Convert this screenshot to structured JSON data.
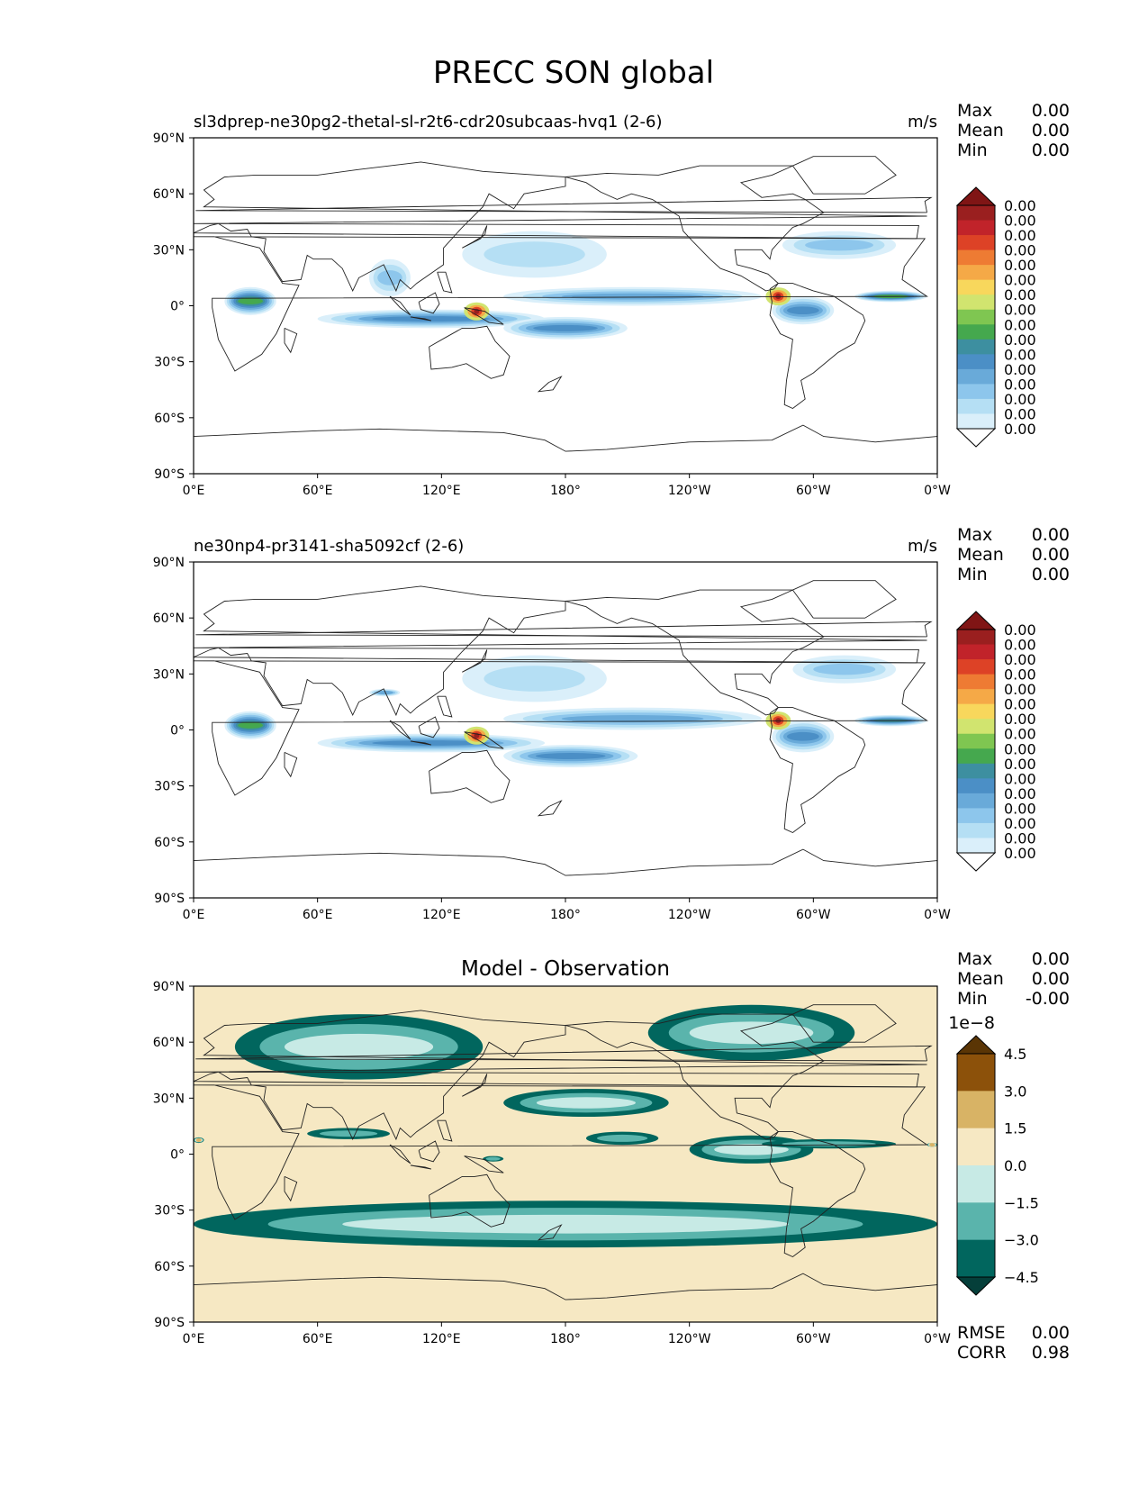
{
  "suptitle": "PRECC SON global",
  "panels": [
    {
      "title_left": "sl3dprep-ne30pg2-thetal-sl-r2t6-cdr20subcaas-hvq1 (2-6)",
      "title_right": "m/s",
      "stats": [
        {
          "label": "Max",
          "value": "0.00"
        },
        {
          "label": "Mean",
          "value": "0.00"
        },
        {
          "label": "Min",
          "value": "0.00"
        }
      ],
      "colorbar": {
        "labels": [
          "0.00",
          "0.00",
          "0.00",
          "0.00",
          "0.00",
          "0.00",
          "0.00",
          "0.00",
          "0.00",
          "0.00",
          "0.00",
          "0.00",
          "0.00",
          "0.00",
          "0.00",
          "0.00"
        ],
        "colors": [
          "#ffffff",
          "#daeffa",
          "#b5dff4",
          "#8dc6ec",
          "#69aad9",
          "#4b8fc6",
          "#3d8fa0",
          "#45a84e",
          "#7fc651",
          "#d1e46f",
          "#f8d75c",
          "#f5a947",
          "#ee7b33",
          "#dd4226",
          "#c1232a",
          "#9a1f1f",
          "#801515"
        ]
      },
      "bands": [
        {
          "lat0": 2,
          "lat1": 7,
          "lon0": 190,
          "lon1": 270,
          "level": 8
        },
        {
          "lat0": 0,
          "lat1": 10,
          "lon0": 150,
          "lon1": 275,
          "level": 4
        },
        {
          "lat0": -12,
          "lat1": -2,
          "lon0": 60,
          "lon1": 170,
          "level": 5
        },
        {
          "lat0": -18,
          "lat1": -6,
          "lon0": 150,
          "lon1": 210,
          "level": 5
        },
        {
          "lat0": -5,
          "lat1": 10,
          "lon0": 15,
          "lon1": 40,
          "level": 7
        },
        {
          "lat0": -10,
          "lat1": 5,
          "lon0": 280,
          "lon1": 310,
          "level": 5
        },
        {
          "lat0": 2,
          "lat1": 8,
          "lon0": 320,
          "lon1": 355,
          "level": 7
        },
        {
          "lat0": 25,
          "lat1": 40,
          "lon0": 285,
          "lon1": 340,
          "level": 3
        },
        {
          "lat0": 15,
          "lat1": 40,
          "lon0": 130,
          "lon1": 200,
          "level": 2
        },
        {
          "lat0": 5,
          "lat1": 25,
          "lon0": 85,
          "lon1": 105,
          "level": 3
        }
      ],
      "peaks": [
        {
          "lat": 5,
          "lon": 283
        },
        {
          "lat": -3,
          "lon": 137
        }
      ]
    },
    {
      "title_left": "ne30np4-pr3141-sha5092cf (2-6)",
      "title_right": "m/s",
      "stats": [
        {
          "label": "Max",
          "value": "0.00"
        },
        {
          "label": "Mean",
          "value": "0.00"
        },
        {
          "label": "Min",
          "value": "0.00"
        }
      ],
      "colorbar": {
        "labels": [
          "0.00",
          "0.00",
          "0.00",
          "0.00",
          "0.00",
          "0.00",
          "0.00",
          "0.00",
          "0.00",
          "0.00",
          "0.00",
          "0.00",
          "0.00",
          "0.00",
          "0.00",
          "0.00"
        ],
        "colors": [
          "#ffffff",
          "#daeffa",
          "#b5dff4",
          "#8dc6ec",
          "#69aad9",
          "#4b8fc6",
          "#3d8fa0",
          "#45a84e",
          "#7fc651",
          "#d1e46f",
          "#f8d75c",
          "#f5a947",
          "#ee7b33",
          "#dd4226",
          "#c1232a",
          "#9a1f1f",
          "#801515"
        ]
      },
      "bands": [
        {
          "lat0": 3,
          "lat1": 8,
          "lon0": 185,
          "lon1": 270,
          "level": 7
        },
        {
          "lat0": 0,
          "lat1": 12,
          "lon0": 150,
          "lon1": 275,
          "level": 4
        },
        {
          "lat0": -12,
          "lat1": -2,
          "lon0": 60,
          "lon1": 170,
          "level": 5
        },
        {
          "lat0": -20,
          "lat1": -8,
          "lon0": 150,
          "lon1": 215,
          "level": 5
        },
        {
          "lat0": -5,
          "lat1": 10,
          "lon0": 15,
          "lon1": 40,
          "level": 7
        },
        {
          "lat0": -12,
          "lat1": 5,
          "lon0": 280,
          "lon1": 310,
          "level": 5
        },
        {
          "lat0": 2,
          "lat1": 8,
          "lon0": 320,
          "lon1": 355,
          "level": 6
        },
        {
          "lat0": 25,
          "lat1": 40,
          "lon0": 290,
          "lon1": 340,
          "level": 3
        },
        {
          "lat0": 15,
          "lat1": 40,
          "lon0": 130,
          "lon1": 200,
          "level": 2
        },
        {
          "lat0": 18,
          "lat1": 22,
          "lon0": 85,
          "lon1": 100,
          "level": 4
        }
      ],
      "peaks": [
        {
          "lat": 5,
          "lon": 283
        },
        {
          "lat": -3,
          "lon": 137
        }
      ]
    },
    {
      "title_center": "Model - Observation",
      "stats": [
        {
          "label": "Max",
          "value": "0.00"
        },
        {
          "label": "Mean",
          "value": "0.00"
        },
        {
          "label": "Min",
          "value": "-0.00"
        }
      ],
      "bottom_stats": [
        {
          "label": "RMSE",
          "value": "0.00"
        },
        {
          "label": "CORR",
          "value": "0.98"
        }
      ],
      "colorbar": {
        "multiplier": "1e−8",
        "labels": [
          "4.5",
          "3.0",
          "1.5",
          "0.0",
          "−1.5",
          "−3.0",
          "−4.5"
        ],
        "colors": [
          "#053f3a",
          "#01665e",
          "#5ab4ac",
          "#c7eae5",
          "#f6e8c3",
          "#d8b365",
          "#8c510a",
          "#5a3505"
        ]
      },
      "background": "#f6e8c3",
      "bands": [
        {
          "lat0": 40,
          "lat1": 75,
          "lon0": 20,
          "lon1": 140,
          "level": 3
        },
        {
          "lat0": 50,
          "lat1": 80,
          "lon0": 220,
          "lon1": 320,
          "level": 3
        },
        {
          "lat0": -50,
          "lat1": -25,
          "lon0": 0,
          "lon1": 360,
          "level": 3
        },
        {
          "lat0": 20,
          "lat1": 35,
          "lon0": 150,
          "lon1": 230,
          "level": 3
        },
        {
          "lat0": -5,
          "lat1": 10,
          "lon0": 240,
          "lon1": 300,
          "level": 3
        },
        {
          "lat0": 5,
          "lat1": 12,
          "lon0": 190,
          "lon1": 225,
          "level": 2
        },
        {
          "lat0": 3,
          "lat1": 8,
          "lon0": 275,
          "lon1": 340,
          "level": 2
        },
        {
          "lat0": 8,
          "lat1": 14,
          "lon0": 55,
          "lon1": 95,
          "level": 2
        },
        {
          "lat0": 4,
          "lat1": 6,
          "lon0": 355,
          "lon1": 360,
          "level": 5
        },
        {
          "lat0": 6,
          "lat1": 9,
          "lon0": 0,
          "lon1": 5,
          "level": 5
        },
        {
          "lat0": -4,
          "lat1": -1,
          "lon0": 140,
          "lon1": 150,
          "level": 2
        }
      ],
      "peaks": []
    }
  ],
  "chart_data": [
    {
      "type": "heatmap",
      "title": "sl3dprep-ne30pg2-thetal-sl-r2t6-cdr20subcaas-hvq1 (2-6)",
      "units": "m/s",
      "xlabel": "",
      "ylabel": "",
      "x_ticks": [
        "0°E",
        "60°E",
        "120°E",
        "180°",
        "120°W",
        "60°W",
        "0°W"
      ],
      "y_ticks": [
        "90°N",
        "60°N",
        "30°N",
        "0°",
        "30°S",
        "60°S",
        "90°S"
      ],
      "xlim": [
        0,
        360
      ],
      "ylim": [
        -90,
        90
      ],
      "stats": {
        "Max": "0.00",
        "Mean": "0.00",
        "Min": "0.00"
      }
    },
    {
      "type": "heatmap",
      "title": "ne30np4-pr3141-sha5092cf (2-6)",
      "units": "m/s",
      "xlabel": "",
      "ylabel": "",
      "x_ticks": [
        "0°E",
        "60°E",
        "120°E",
        "180°",
        "120°W",
        "60°W",
        "0°W"
      ],
      "y_ticks": [
        "90°N",
        "60°N",
        "30°N",
        "0°",
        "30°S",
        "60°S",
        "90°S"
      ],
      "xlim": [
        0,
        360
      ],
      "ylim": [
        -90,
        90
      ],
      "stats": {
        "Max": "0.00",
        "Mean": "0.00",
        "Min": "0.00"
      }
    },
    {
      "type": "heatmap",
      "title": "Model - Observation",
      "x_ticks": [
        "0°E",
        "60°E",
        "120°E",
        "180°",
        "120°W",
        "60°W",
        "0°W"
      ],
      "y_ticks": [
        "90°N",
        "60°N",
        "30°N",
        "0°",
        "30°S",
        "60°S",
        "90°S"
      ],
      "xlim": [
        0,
        360
      ],
      "ylim": [
        -90,
        90
      ],
      "colorbar_levels": [
        -4.5,
        -3.0,
        -1.5,
        0.0,
        1.5,
        3.0,
        4.5
      ],
      "colorbar_scale": "1e-8",
      "stats": {
        "Max": "0.00",
        "Mean": "0.00",
        "Min": "-0.00",
        "RMSE": "0.00",
        "CORR": "0.98"
      }
    }
  ]
}
